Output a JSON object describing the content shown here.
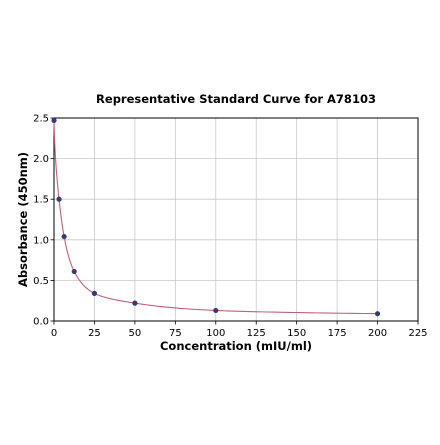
{
  "chart_data": {
    "type": "scatter",
    "title": "Representative Standard Curve for A78103",
    "xlabel": "Concentration (mIU/ml)",
    "ylabel": "Absorbance (450nm)",
    "xlim": [
      0,
      225
    ],
    "ylim": [
      0,
      2.5
    ],
    "xticks": [
      0,
      25,
      50,
      75,
      100,
      125,
      150,
      175,
      200,
      225
    ],
    "xtick_labels": [
      "0",
      "25",
      "50",
      "75",
      "100",
      "125",
      "150",
      "175",
      "200",
      "225"
    ],
    "yticks": [
      0.0,
      0.5,
      1.0,
      1.5,
      2.0,
      2.5
    ],
    "ytick_labels": [
      "0.0",
      "0.5",
      "1.0",
      "1.5",
      "2.0",
      "2.5"
    ],
    "grid": true,
    "legend": "none",
    "series": [
      {
        "x": [
          0,
          3.125,
          6.25,
          12.5,
          25,
          50,
          100,
          200
        ],
        "y": [
          2.47,
          1.5,
          1.04,
          0.61,
          0.34,
          0.22,
          0.13,
          0.09
        ],
        "marker_color": "#3a3a6e",
        "fit_line": true,
        "fit_color": "#c06080"
      }
    ]
  }
}
